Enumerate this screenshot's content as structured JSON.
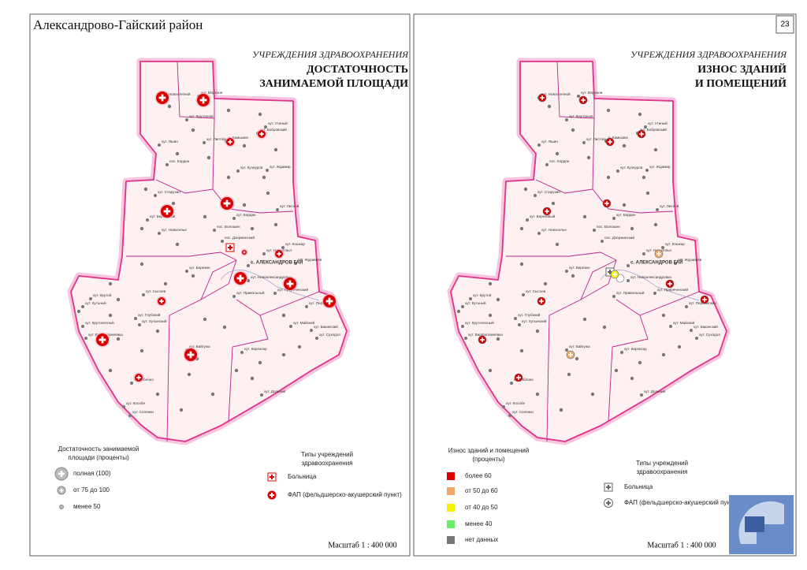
{
  "header": {
    "title": "Александрово-Гайский район",
    "page_number": "23"
  },
  "places": [
    "хут. Новостепной",
    "хут. Морозов",
    "хут. Кругленов",
    "хут. Утиный",
    "хут. Бобровский",
    "хут. Яшин",
    "хут. Листовый",
    "с. Камышки",
    "пос. Кордон",
    "хут. Кузнуров",
    "хут. Ждамир",
    "хут. Старухин",
    "хут. Березовый",
    "хут. Лесной",
    "хут. Бордин",
    "хут. Новоселье",
    "пос. Волошин",
    "пос. Дзержинский",
    "хут. Кошкар",
    "хут. Новый Быт",
    "хут. Журавлёв",
    "с. АЛЕКСАНДРОВ ГАЙ",
    "хут. Березин",
    "хут. Новоалександровка",
    "хут. Приреченский",
    "хут. Привольный",
    "хут. Сысоев",
    "хут. Крутой",
    "хут. Кутьный",
    "хут. Глубокий",
    "хут. Хутынский",
    "хут. Крутолесный",
    "хут. Варфоломеевка",
    "хут. Майский",
    "хут. Бакинский",
    "хут. Пересыпкин",
    "хут. Байгужа",
    "хут. Кирпатар",
    "хут. Суходол",
    "хут. Яблоно",
    "хут. Дольний",
    "хут. Кособе",
    "хут. Соленки"
  ],
  "left_map": {
    "section": "УЧРЕЖДЕНИЯ ЗДРАВООХРАНЕНИЯ",
    "title_lines": [
      "ДОСТАТОЧНОСТЬ",
      "ЗАНИМАЕМОЙ ПЛОЩАДИ"
    ],
    "legend": {
      "title_lines": [
        "Достаточность занимаемой",
        "площади (проценты)"
      ],
      "items": [
        "полная (100)",
        "от 75 до 100",
        "менее 50"
      ]
    },
    "types": {
      "title_lines": [
        "Типы учреждений",
        "здравоохранения"
      ],
      "items": [
        "Больница",
        "ФАП (фельдшерско-акушерский пункт)"
      ]
    },
    "scale": "Масштаб 1 : 400 000"
  },
  "right_map": {
    "section": "УЧРЕЖДЕНИЯ ЗДРАВООХРАНЕНИЯ",
    "title_lines": [
      "ИЗНОС ЗДАНИЙ",
      "И ПОМЕЩЕНИЙ"
    ],
    "legend": {
      "title_lines": [
        "Износ зданий и помещений",
        "(проценты)"
      ],
      "items": [
        "более 60",
        "от 50 до 60",
        "от 40 до 50",
        "менее 40",
        "нет данных"
      ]
    },
    "types": {
      "title_lines": [
        "Типы учреждений",
        "здравоохранения"
      ],
      "items": [
        "Больница",
        "ФАП (фельдшерско-акушерский пункт)"
      ]
    },
    "scale": "Масштаб 1 : 400 000"
  }
}
